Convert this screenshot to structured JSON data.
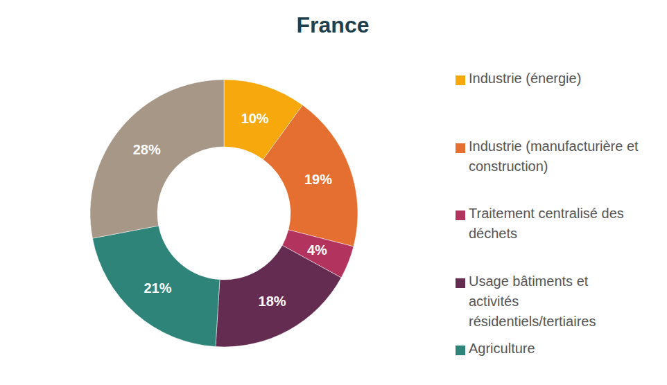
{
  "chart_data": {
    "type": "donut",
    "title": "France",
    "categories": [
      "Industrie (énergie)",
      "Industrie (manufacturière et construction)",
      "Traitement centralisé des déchets",
      "Usage bâtiments et activités résidentiels/tertiaires",
      "Agriculture",
      null
    ],
    "values": [
      10,
      19,
      4,
      18,
      21,
      28
    ],
    "value_labels": [
      "10%",
      "19%",
      "4%",
      "18%",
      "21%",
      "28%"
    ],
    "colors": [
      "#f7a80c",
      "#e56f30",
      "#b3335f",
      "#652c52",
      "#2e8479",
      "#a69787"
    ],
    "data_labels": true,
    "legend": "right"
  }
}
